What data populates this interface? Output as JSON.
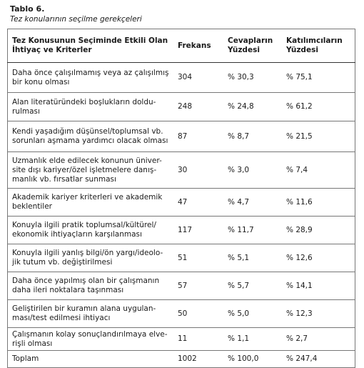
{
  "caption": {
    "title": "Tablo 6.",
    "subtitle": "Tez konularının seçilme gerekçeleri"
  },
  "table": {
    "header": [
      "Tez Konusunun Seçiminde Etkili Olan\nİhtiyaç ve Kriterler",
      "Frekans",
      "Cevapların\nYüzdesi",
      "Katılımcıların\nYüzdesi"
    ],
    "rows": [
      [
        "Daha önce çalışılmamış veya az çalışılmış\nbir konu olması",
        "304",
        "% 30,3",
        "% 75,1"
      ],
      [
        "Alan literatüründeki boşlukların doldu-\nrulması",
        "248",
        "% 24,8",
        "% 61,2"
      ],
      [
        "Kendi yaşadığım düşünsel/toplumsal vb.\nsorunları aşmama yardımcı olacak olması",
        "87",
        "% 8,7",
        "% 21,5"
      ],
      [
        "Uzmanlık elde edilecek konunun üniver-\nsite dışı kariyer/özel işletmelere danış-\nmanlık vb. fırsatlar sunması",
        "30",
        "% 3,0",
        "% 7,4"
      ],
      [
        "Akademik kariyer kriterleri ve akademik\nbeklentiler",
        "47",
        "% 4,7",
        "% 11,6"
      ],
      [
        "Konuyla ilgili pratik toplumsal/kültürel/\nekonomik ihtiyaçların karşılanması",
        "117",
        "% 11,7",
        "% 28,9"
      ],
      [
        "Konuyla ilgili yanlış bilgi/ön yargı/ideolo-\njik tutum vb. değiştirilmesi",
        "51",
        "% 5,1",
        "% 12,6"
      ],
      [
        "Daha önce yapılmış olan bir çalışmanın\ndaha ileri noktalara taşınması",
        "57",
        "% 5,7",
        "% 14,1"
      ],
      [
        "Geliştirilen bir kuramın alana uygulan-\nması/test edilmesi ihtiyacı",
        "50",
        "% 5,0",
        "% 12,3"
      ],
      [
        "Çalışmanın kolay sonuçlandırılmaya elve-\nrişli olması",
        "11",
        "% 1,1",
        "% 2,7"
      ],
      [
        "Toplam",
        "1002",
        "% 100,0",
        "% 247,4"
      ]
    ]
  }
}
